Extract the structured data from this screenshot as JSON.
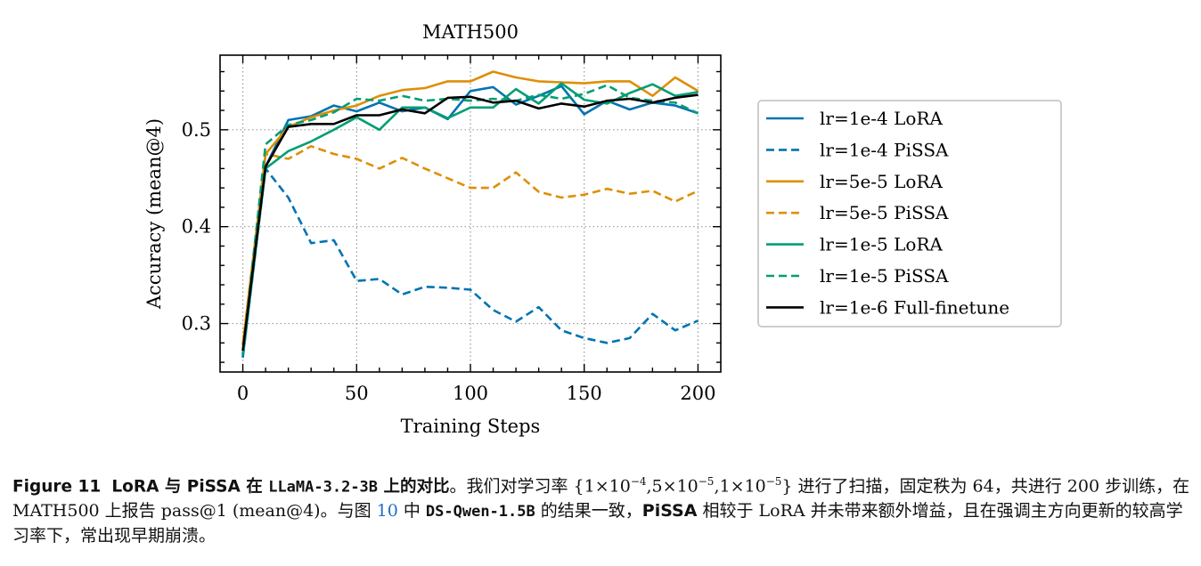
{
  "chart_data": {
    "type": "line",
    "title": "MATH500",
    "xlabel": "Training Steps",
    "ylabel": "Accuracy (mean@4)",
    "xlim": [
      -10,
      210
    ],
    "ylim": [
      0.25,
      0.577
    ],
    "xticks": [
      0,
      50,
      100,
      150,
      200
    ],
    "xtick_labels": [
      "0",
      "50",
      "100",
      "150",
      "200"
    ],
    "yticks": [
      0.3,
      0.4,
      0.5
    ],
    "ytick_labels": [
      "0.3",
      "0.4",
      "0.5"
    ],
    "grid": true,
    "legend_position": "outside-right",
    "x": [
      0,
      10,
      20,
      30,
      40,
      50,
      60,
      70,
      80,
      90,
      100,
      110,
      120,
      130,
      140,
      150,
      160,
      170,
      180,
      190,
      200
    ],
    "series": [
      {
        "name": "lr=1e-4 LoRA",
        "color": "#0173b2",
        "dash": "solid",
        "values": [
          0.265,
          0.462,
          0.51,
          0.514,
          0.525,
          0.519,
          0.528,
          0.519,
          0.523,
          0.511,
          0.54,
          0.544,
          0.526,
          0.535,
          0.545,
          0.516,
          0.53,
          0.521,
          0.528,
          0.525,
          0.517
        ]
      },
      {
        "name": "lr=1e-4 PiSSA",
        "color": "#0173b2",
        "dash": "dashed",
        "values": [
          0.265,
          0.46,
          0.43,
          0.383,
          0.386,
          0.344,
          0.346,
          0.33,
          0.338,
          0.337,
          0.335,
          0.314,
          0.302,
          0.317,
          0.293,
          0.285,
          0.28,
          0.285,
          0.31,
          0.293,
          0.303
        ]
      },
      {
        "name": "lr=5e-5 LoRA",
        "color": "#de8f05",
        "dash": "solid",
        "values": [
          0.278,
          0.475,
          0.503,
          0.513,
          0.52,
          0.525,
          0.535,
          0.541,
          0.543,
          0.55,
          0.55,
          0.56,
          0.554,
          0.55,
          0.549,
          0.548,
          0.55,
          0.55,
          0.535,
          0.554,
          0.54
        ]
      },
      {
        "name": "lr=5e-5 PiSSA",
        "color": "#de8f05",
        "dash": "dashed",
        "values": [
          0.278,
          0.475,
          0.47,
          0.483,
          0.475,
          0.47,
          0.46,
          0.471,
          0.46,
          0.45,
          0.44,
          0.44,
          0.456,
          0.436,
          0.43,
          0.433,
          0.439,
          0.434,
          0.437,
          0.426,
          0.437
        ]
      },
      {
        "name": "lr=1e-5 LoRA",
        "color": "#029e73",
        "dash": "solid",
        "values": [
          0.268,
          0.46,
          0.478,
          0.488,
          0.5,
          0.513,
          0.5,
          0.523,
          0.523,
          0.512,
          0.523,
          0.523,
          0.542,
          0.527,
          0.548,
          0.531,
          0.527,
          0.538,
          0.547,
          0.535,
          0.539
        ]
      },
      {
        "name": "lr=1e-5 PiSSA",
        "color": "#029e73",
        "dash": "dashed",
        "values": [
          0.268,
          0.485,
          0.505,
          0.51,
          0.518,
          0.532,
          0.53,
          0.535,
          0.53,
          0.532,
          0.53,
          0.532,
          0.53,
          0.536,
          0.532,
          0.537,
          0.546,
          0.533,
          0.53,
          0.528,
          0.517
        ]
      },
      {
        "name": "lr=1e-6 Full-finetune",
        "color": "#000000",
        "dash": "solid",
        "values": [
          0.272,
          0.462,
          0.503,
          0.506,
          0.506,
          0.515,
          0.515,
          0.521,
          0.517,
          0.533,
          0.534,
          0.528,
          0.53,
          0.522,
          0.527,
          0.524,
          0.53,
          0.532,
          0.528,
          0.533,
          0.536
        ]
      }
    ]
  },
  "caption": {
    "figure_label": "Figure 11",
    "title_part1": "LoRA 与 PiSSA 在 ",
    "title_model": "LLaMA-3.2-3B",
    "title_part2": " 上的对比",
    "text1": "。我们对学习率 {1×10",
    "exp1": "−4",
    "text2": ",5×10",
    "exp2": "−5",
    "text3": ",1×10",
    "exp3": "−5",
    "text4": "} 进行了扫描，固定秩为 64，共进行 200 步训练，在 MATH500 上报告 pass@1 (mean@4)。与图 ",
    "fig_ref": "10",
    "text5": " 中 ",
    "ref_model": "DS-Qwen-1.5B",
    "text6": " 的结果一致，",
    "pissa_bold": "PiSSA",
    "text7": " 相较于 LoRA 并未带来额外增益，且在强调主方向更新的较高学习率下，常出现早期崩溃。"
  }
}
